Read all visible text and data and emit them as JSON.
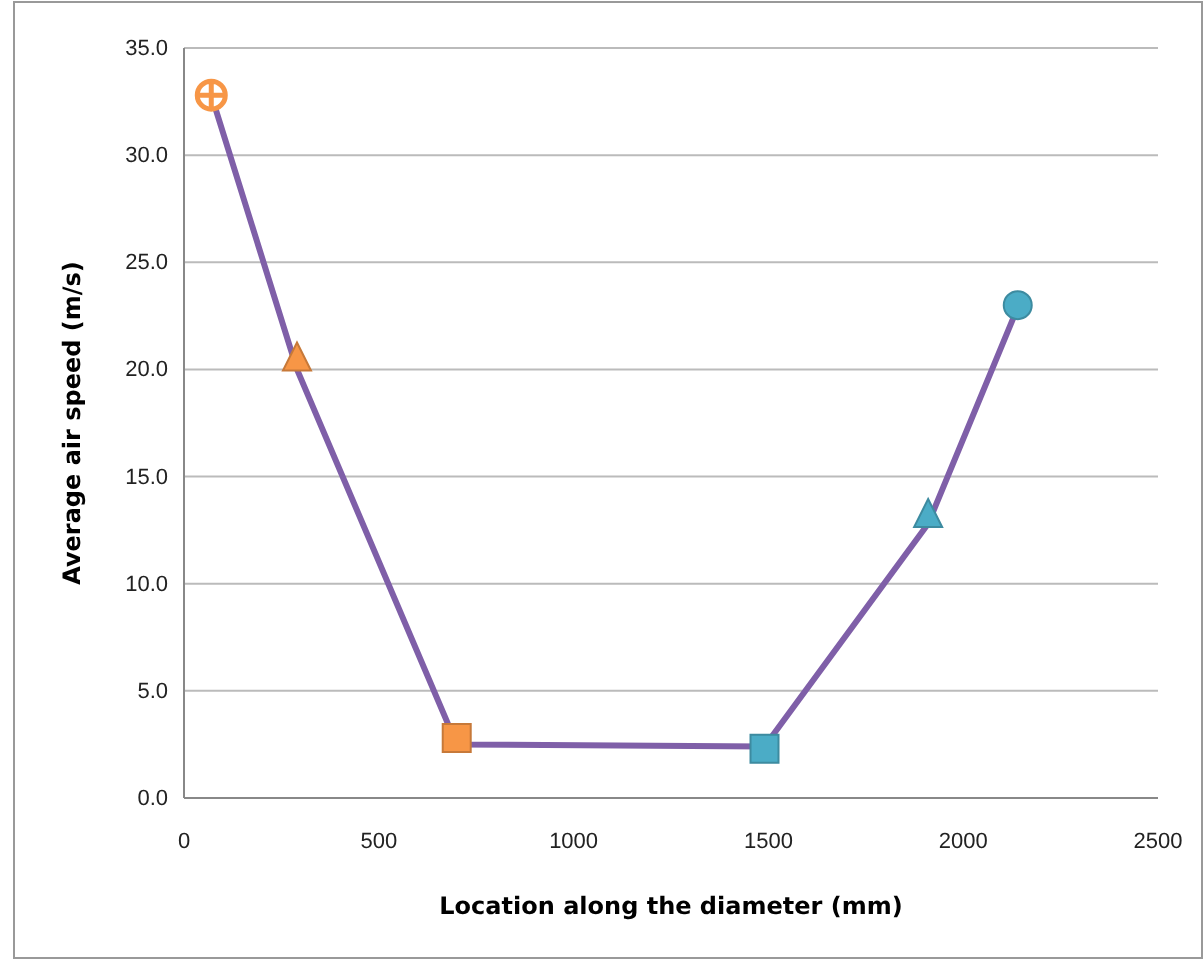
{
  "chart_data": {
    "type": "line",
    "xlabel": "Location along the diameter (mm)",
    "ylabel": "Average air speed (m/s)",
    "xlim": [
      0,
      2500
    ],
    "xticks": [
      0,
      500,
      1000,
      1500,
      2000,
      2500
    ],
    "ylim": [
      0,
      35
    ],
    "yticks": [
      {
        "value": 0,
        "label": "0.0"
      },
      {
        "value": 5,
        "label": "5.0"
      },
      {
        "value": 10,
        "label": "10.0"
      },
      {
        "value": 15,
        "label": "15.0"
      },
      {
        "value": 20,
        "label": "20.0"
      },
      {
        "value": 25,
        "label": "25.0"
      },
      {
        "value": 30,
        "label": "30.0"
      },
      {
        "value": 35,
        "label": "35.0"
      }
    ],
    "grid": "y",
    "line_style": "solid",
    "series": [
      {
        "color": "#7f5fa8",
        "marker": "none",
        "x": [
          70,
          290,
          700,
          1490,
          1910,
          2140
        ],
        "values": [
          32.8,
          20.0,
          2.5,
          2.4,
          12.8,
          22.9
        ]
      },
      {
        "type": "scatter",
        "color": "#f79646",
        "marker": "cross",
        "x": [
          70
        ],
        "values": [
          32.8
        ]
      },
      {
        "type": "scatter",
        "color": "#f79646",
        "marker": "triangle",
        "x": [
          290
        ],
        "values": [
          20.6
        ]
      },
      {
        "type": "scatter",
        "color": "#f79646",
        "marker": "square",
        "x": [
          700
        ],
        "values": [
          2.8
        ]
      },
      {
        "type": "scatter",
        "color": "#4bacc6",
        "marker": "square",
        "x": [
          1490
        ],
        "values": [
          2.3
        ]
      },
      {
        "type": "scatter",
        "color": "#4bacc6",
        "marker": "triangle",
        "x": [
          1910
        ],
        "values": [
          13.3
        ]
      },
      {
        "type": "scatter",
        "color": "#4bacc6",
        "marker": "circle",
        "x": [
          2140
        ],
        "values": [
          23.0
        ]
      }
    ]
  }
}
